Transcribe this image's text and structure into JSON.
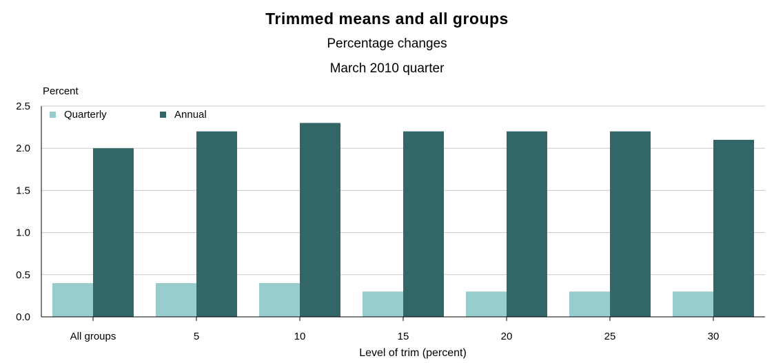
{
  "chart_data": {
    "type": "bar",
    "title": "Trimmed means and all groups",
    "subtitle": [
      "Percentage changes",
      "March 2010 quarter"
    ],
    "ylabel": "Percent",
    "xlabel": "Level of trim (percent)",
    "categories": [
      "All groups",
      "5",
      "10",
      "15",
      "20",
      "25",
      "30"
    ],
    "series": [
      {
        "name": "Quarterly",
        "color": "#99cccc",
        "values": [
          0.4,
          0.4,
          0.4,
          0.3,
          0.3,
          0.3,
          0.3
        ]
      },
      {
        "name": "Annual",
        "color": "#336666",
        "values": [
          2.0,
          2.2,
          2.3,
          2.2,
          2.2,
          2.2,
          2.1
        ]
      }
    ],
    "ylim": [
      0,
      2.5
    ],
    "yticks": [
      "0.0",
      "0.5",
      "1.0",
      "1.5",
      "2.0",
      "2.5"
    ],
    "grid": true,
    "legend_position": "top-left"
  }
}
